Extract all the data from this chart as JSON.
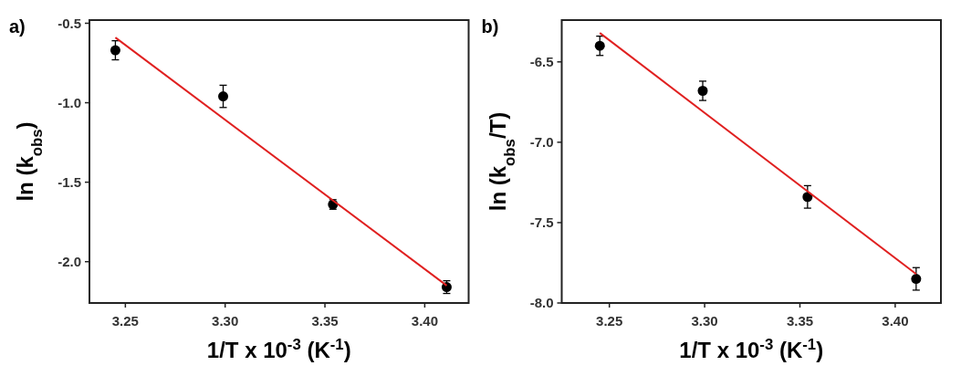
{
  "chart_data": [
    {
      "type": "scatter",
      "xlabel": "1/T x 10$^{-3}$ (K$^{-1}$)",
      "ylabel": "ln (k$_{obs}$)",
      "annotations": [
        "a)"
      ],
      "xlim": [
        3.232,
        3.422
      ],
      "xticks": [
        {
          "value": 3.25,
          "label": "3.25"
        },
        {
          "value": 3.3,
          "label": "3.30"
        },
        {
          "value": 3.35,
          "label": "3.35"
        },
        {
          "value": 3.4,
          "label": "3.40"
        }
      ],
      "ylim": [
        -2.26,
        -0.48
      ],
      "yticks": [
        -0.5,
        {
          "value": -1.0,
          "label": "-1.0"
        },
        -1.5,
        {
          "value": -2.0,
          "label": "-2.0"
        }
      ],
      "grid": false,
      "series": [
        {
          "color": "#000000",
          "marker": "circle",
          "x": [
            3.245,
            3.299,
            3.354,
            3.411
          ],
          "values": [
            -0.67,
            -0.96,
            -1.64,
            -2.16
          ],
          "errors": [
            0.06,
            0.07,
            0.03,
            0.04
          ]
        },
        {
          "type": "line",
          "color": "#e02020",
          "line_style": "solid",
          "x": [
            3.245,
            3.411
          ],
          "values": [
            -0.59,
            -2.15
          ]
        }
      ]
    },
    {
      "type": "scatter",
      "xlabel": "1/T x 10$^{-3}$ (K$^{-1}$)",
      "ylabel": "ln (k$_{obs}$/T)",
      "annotations": [
        "b)"
      ],
      "xlim": [
        3.225,
        3.424
      ],
      "xticks": [
        {
          "value": 3.25,
          "label": "3.25"
        },
        {
          "value": 3.3,
          "label": "3.30"
        },
        {
          "value": 3.35,
          "label": "3.35"
        },
        {
          "value": 3.4,
          "label": "3.40"
        }
      ],
      "ylim": [
        -8.0,
        -6.24
      ],
      "yticks": [
        -6.5,
        {
          "value": -7.0,
          "label": "-7.0"
        },
        -7.5,
        {
          "value": -8.0,
          "label": "-8.0"
        }
      ],
      "grid": false,
      "series": [
        {
          "color": "#000000",
          "marker": "circle",
          "x": [
            3.245,
            3.299,
            3.354,
            3.411
          ],
          "values": [
            -6.4,
            -6.68,
            -7.34,
            -7.85
          ],
          "errors": [
            0.06,
            0.06,
            0.07,
            0.07
          ]
        },
        {
          "type": "line",
          "color": "#e02020",
          "line_style": "solid",
          "x": [
            3.245,
            3.411
          ],
          "values": [
            -6.32,
            -7.82
          ]
        }
      ]
    }
  ]
}
